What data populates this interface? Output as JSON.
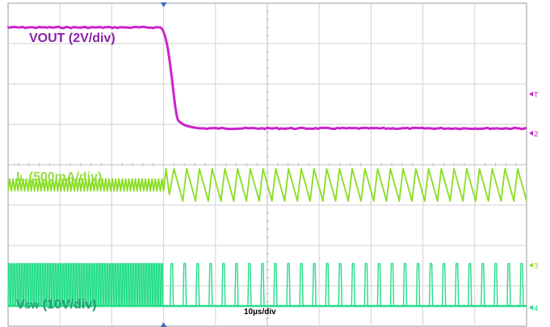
{
  "chart_data": {
    "type": "line",
    "title": "",
    "xlabel": "",
    "ylabel": "",
    "x_scale_label": "10µs/div",
    "x_divisions": 10,
    "y_divisions": 8,
    "grid": true,
    "series": [
      {
        "name": "VOUT (2V/div)",
        "name_main": "VOUT (2V/div)",
        "name_sub": "",
        "name_rest": "",
        "channel": "2",
        "color": "#cc22cc",
        "level_high_div": 7.4,
        "level_low_div": 4.9,
        "fall_start_div": 3.0,
        "fall_end_div": 3.5
      },
      {
        "name": "IL (500mA/div)",
        "name_main": "I",
        "name_sub": "L",
        "name_rest": " (500mA/div)",
        "channel": "3",
        "color": "#88dd22",
        "level_div": 3.5,
        "ripple_before_div": 0.15,
        "ripple_after_div": 0.4,
        "cycles_before": 47,
        "cycles_after": 28,
        "transition_div": 3.0
      },
      {
        "name": "VSW (10V/div)",
        "name_main": "V",
        "name_sub": "SW",
        "name_rest": " (10V/div)",
        "channel": "4",
        "color": "#22dd88",
        "low_div": 0.5,
        "high_div": 1.55,
        "pulses_before": 60,
        "pulses_after": 28,
        "transition_div": 3.0
      }
    ],
    "trigger_marker": "T"
  }
}
